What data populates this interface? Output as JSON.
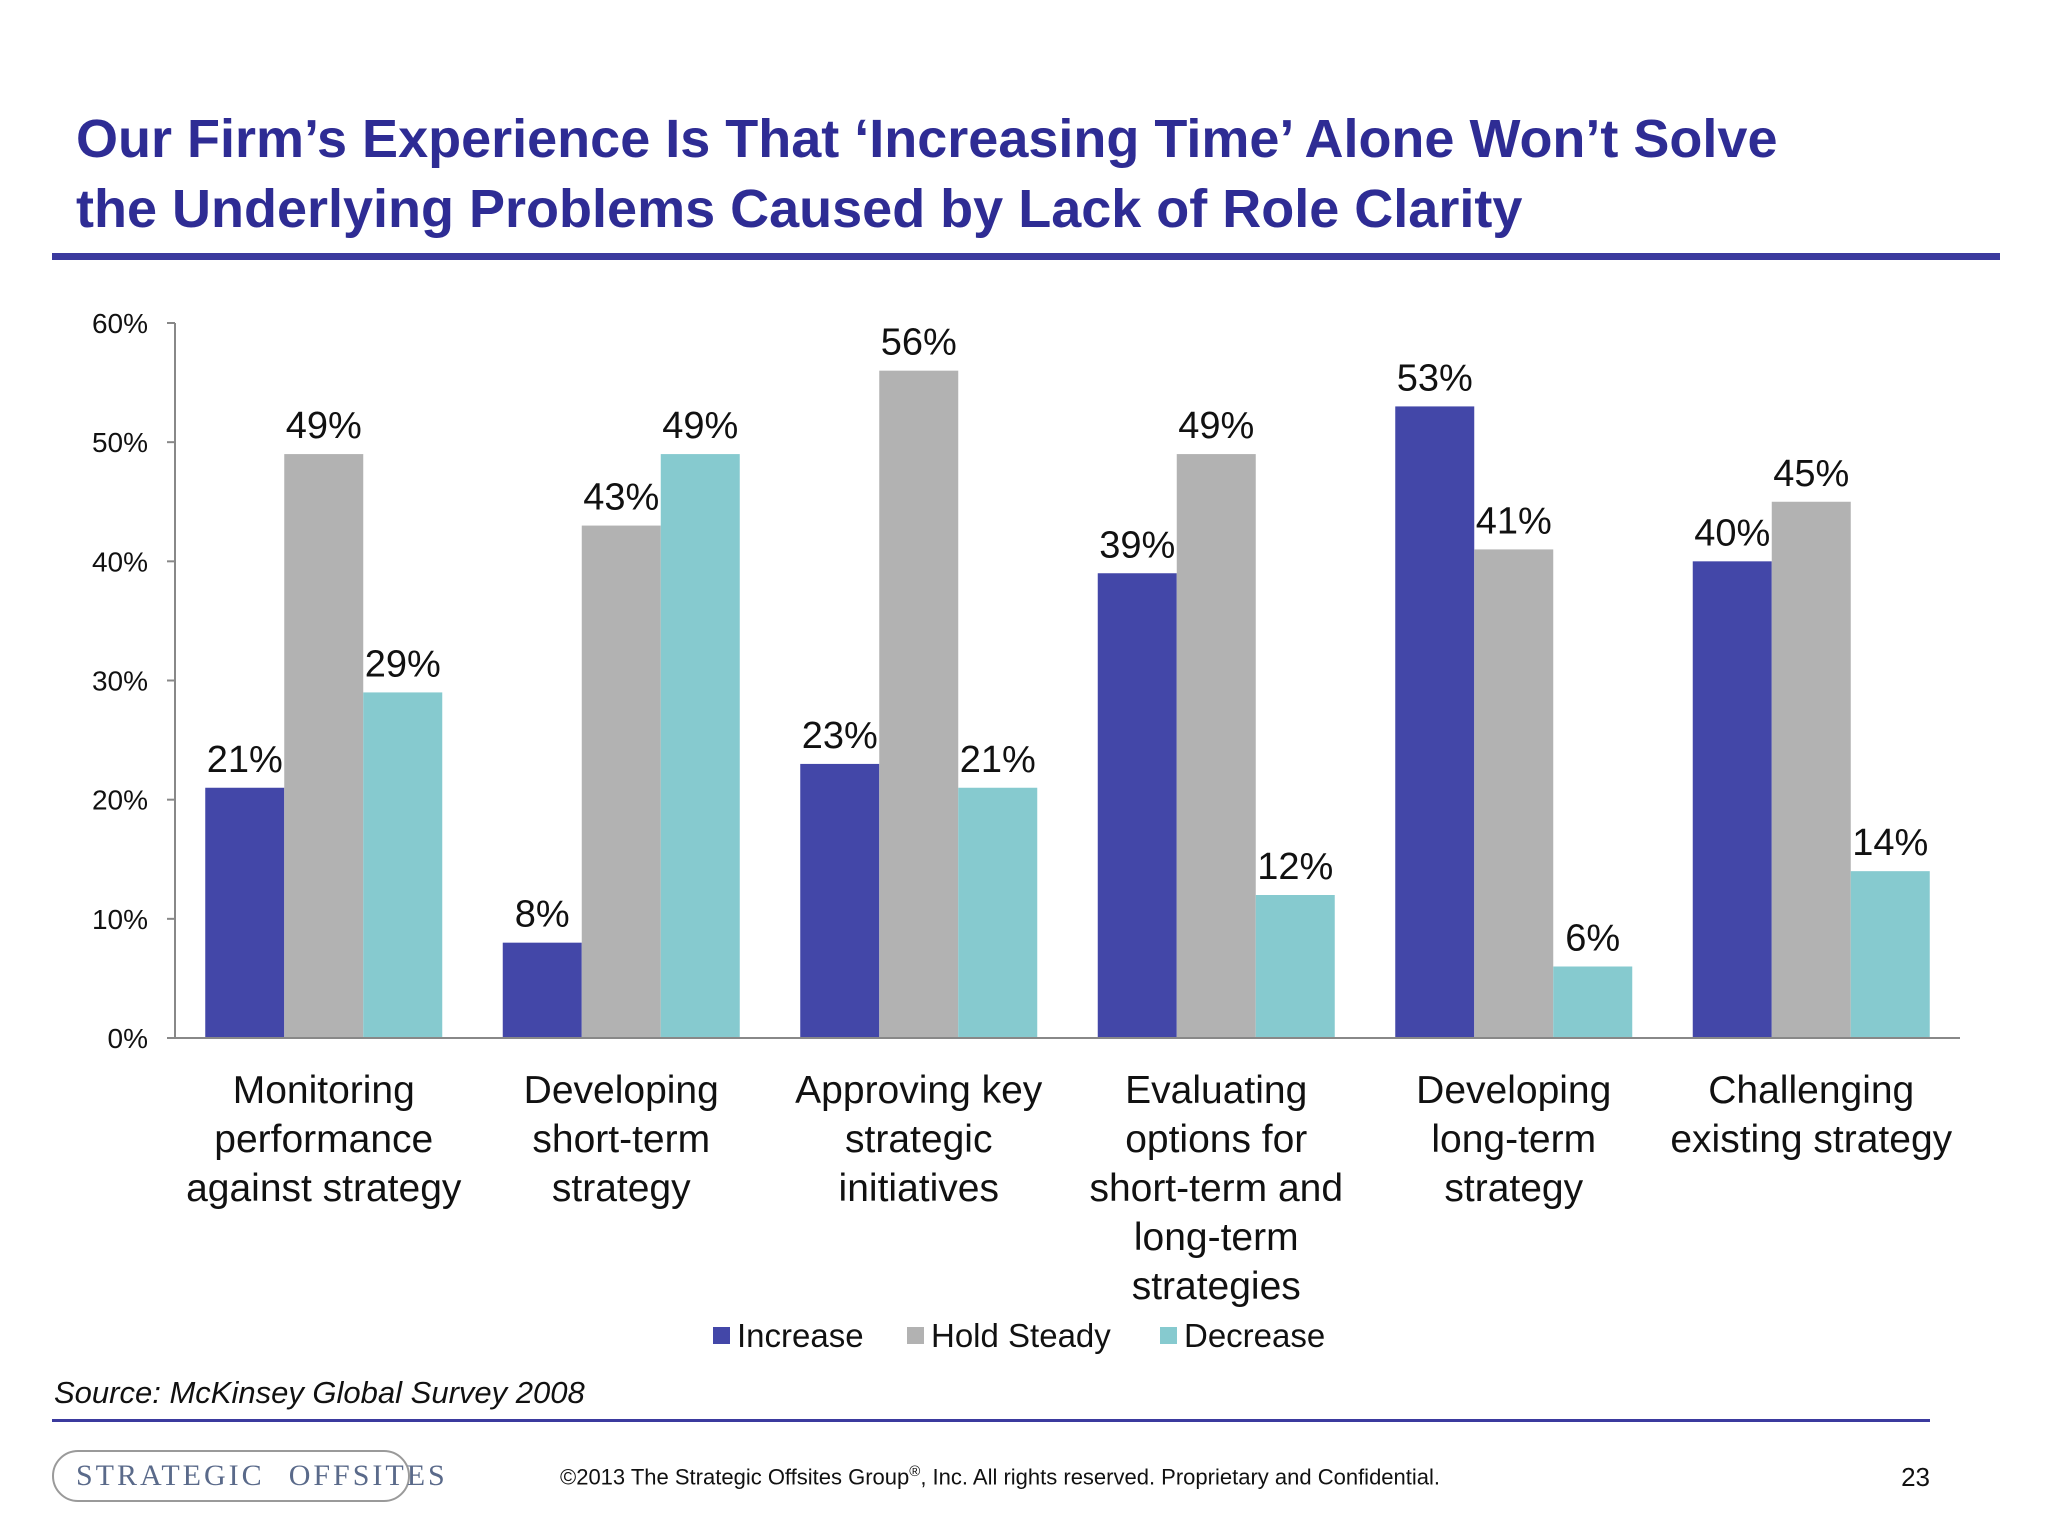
{
  "slide": {
    "title_line1": "Our Firm’s Experience Is That ‘Increasing Time’ Alone Won’t Solve",
    "title_line2": "the Underlying Problems Caused by Lack of Role Clarity"
  },
  "chart_data": {
    "type": "bar",
    "categories": [
      [
        "Monitoring",
        "performance",
        "against strategy"
      ],
      [
        "Developing",
        "short-term",
        "strategy"
      ],
      [
        "Approving key",
        "strategic",
        "initiatives"
      ],
      [
        "Evaluating",
        "options for",
        "short-term and",
        "long-term",
        "strategies"
      ],
      [
        "Developing",
        "long-term",
        "strategy"
      ],
      [
        "Challenging",
        "existing strategy"
      ]
    ],
    "series": [
      {
        "name": "Increase",
        "color": "#4347A8",
        "values": [
          21,
          8,
          23,
          39,
          53,
          40
        ]
      },
      {
        "name": "Hold Steady",
        "color": "#B2B2B2",
        "values": [
          49,
          43,
          56,
          49,
          41,
          45
        ]
      },
      {
        "name": "Decrease",
        "color": "#86CACF",
        "values": [
          29,
          49,
          21,
          12,
          6,
          14
        ]
      }
    ],
    "data_labels": [
      [
        "21%",
        "8%",
        "23%",
        "39%",
        "53%",
        "40%"
      ],
      [
        "49%",
        "43%",
        "56%",
        "49%",
        "41%",
        "45%"
      ],
      [
        "29%",
        "49%",
        "21%",
        "12%",
        "6%",
        "14%"
      ]
    ],
    "y_ticks": [
      "0%",
      "10%",
      "20%",
      "30%",
      "40%",
      "50%",
      "60%"
    ],
    "ylim": [
      0,
      60
    ],
    "legend_position": "bottom",
    "grid": false
  },
  "source": "Source: McKinsey Global Survey 2008",
  "footer": {
    "logo_word1": "STRATEGIC",
    "logo_word2": "OFFSITES",
    "copyright_pre": "©2013 The Strategic Offsites Group",
    "copyright_sup": "®",
    "copyright_post": ", Inc.  All rights reserved. Proprietary and Confidential.",
    "page_number": "23"
  }
}
